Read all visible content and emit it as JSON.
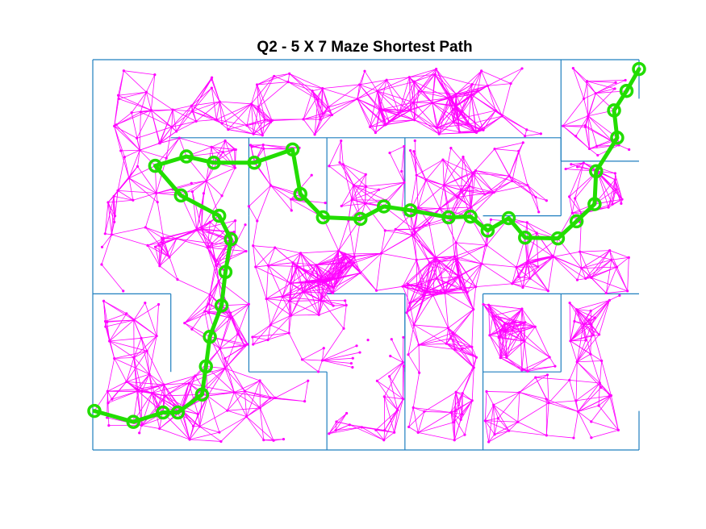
{
  "chart_data": {
    "type": "graph",
    "title": "Q2 - 5 X 7 Maze Shortest Path",
    "maze": {
      "rows": 5,
      "cols": 7,
      "xlim": [
        0,
        7
      ],
      "ylim": [
        0,
        5
      ]
    },
    "colors": {
      "walls": "#1f7fbf",
      "edges": "#ff00ff",
      "path": "#22dd00",
      "background": "#ffffff"
    },
    "walls": [
      [
        [
          0,
          5
        ],
        [
          7,
          5
        ]
      ],
      [
        [
          0,
          0
        ],
        [
          7,
          0
        ]
      ],
      [
        [
          0,
          0
        ],
        [
          0,
          5
        ]
      ],
      [
        [
          7,
          0
        ],
        [
          7,
          0.5
        ]
      ],
      [
        [
          7,
          4.5
        ],
        [
          7,
          5
        ]
      ],
      [
        [
          6,
          5
        ],
        [
          6,
          3.7
        ]
      ],
      [
        [
          6,
          3.7
        ],
        [
          7,
          3.7
        ]
      ],
      [
        [
          1,
          4
        ],
        [
          6,
          4
        ]
      ],
      [
        [
          3,
          4
        ],
        [
          3,
          3
        ]
      ],
      [
        [
          4,
          4
        ],
        [
          4,
          3
        ]
      ],
      [
        [
          2,
          4
        ],
        [
          2,
          3
        ]
      ],
      [
        [
          2,
          1
        ],
        [
          2,
          3
        ]
      ],
      [
        [
          2,
          1
        ],
        [
          3,
          1
        ]
      ],
      [
        [
          3,
          1
        ],
        [
          3,
          0
        ]
      ],
      [
        [
          1,
          2
        ],
        [
          1,
          1
        ]
      ],
      [
        [
          0,
          2
        ],
        [
          1,
          2
        ]
      ],
      [
        [
          5,
          3
        ],
        [
          6,
          3
        ]
      ],
      [
        [
          6,
          3
        ],
        [
          6,
          4
        ]
      ],
      [
        [
          3,
          2
        ],
        [
          4,
          2
        ]
      ],
      [
        [
          4,
          2
        ],
        [
          4,
          0
        ]
      ],
      [
        [
          5,
          2
        ],
        [
          7,
          2
        ]
      ],
      [
        [
          6,
          2
        ],
        [
          6,
          1
        ]
      ],
      [
        [
          5,
          2
        ],
        [
          5,
          0
        ]
      ],
      [
        [
          5,
          1
        ],
        [
          6,
          1
        ]
      ],
      [
        [
          4,
          2
        ],
        [
          4,
          1
        ]
      ]
    ],
    "path": [
      [
        0.02,
        0.5
      ],
      [
        0.52,
        0.36
      ],
      [
        0.9,
        0.48
      ],
      [
        1.09,
        0.48
      ],
      [
        1.4,
        0.71
      ],
      [
        1.45,
        1.07
      ],
      [
        1.5,
        1.45
      ],
      [
        1.65,
        1.85
      ],
      [
        1.7,
        2.28
      ],
      [
        1.77,
        2.7
      ],
      [
        1.62,
        3.0
      ],
      [
        1.13,
        3.26
      ],
      [
        0.8,
        3.64
      ],
      [
        1.2,
        3.76
      ],
      [
        1.55,
        3.68
      ],
      [
        2.07,
        3.68
      ],
      [
        2.56,
        3.85
      ],
      [
        2.66,
        3.28
      ],
      [
        2.95,
        2.98
      ],
      [
        3.43,
        2.96
      ],
      [
        3.73,
        3.12
      ],
      [
        4.07,
        3.07
      ],
      [
        4.56,
        2.98
      ],
      [
        4.84,
        2.99
      ],
      [
        5.06,
        2.81
      ],
      [
        5.33,
        2.97
      ],
      [
        5.54,
        2.72
      ],
      [
        5.96,
        2.71
      ],
      [
        6.2,
        2.93
      ],
      [
        6.43,
        3.15
      ],
      [
        6.45,
        3.57
      ],
      [
        6.72,
        4.0
      ],
      [
        6.68,
        4.35
      ],
      [
        6.84,
        4.6
      ],
      [
        7.0,
        4.88
      ]
    ],
    "node_count": 540,
    "edge_count": 2200,
    "edge_radius": 0.5
  }
}
